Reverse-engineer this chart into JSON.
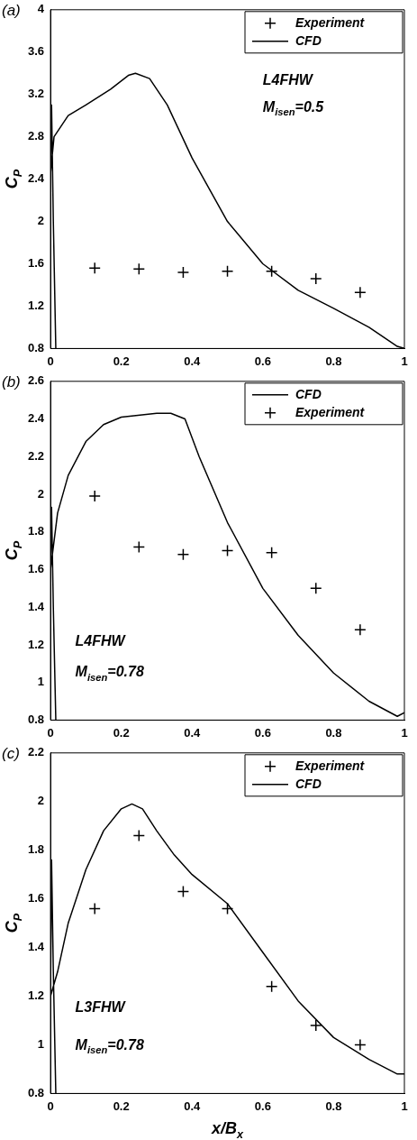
{
  "chart_data": [
    {
      "type": "line",
      "title": "(a)",
      "ylabel": "C$_{P}$",
      "xlim": [
        0,
        1
      ],
      "xticks": [
        0,
        0.2,
        0.4,
        0.6,
        0.8,
        1
      ],
      "ylim": [
        0.8,
        4
      ],
      "yticks": [
        0.8,
        1.2,
        1.6,
        2,
        2.4,
        2.8,
        3.2,
        3.6,
        4
      ],
      "grid": false,
      "legend": "top right",
      "annotations": [
        "L4FHW",
        "M$_{isen}$=0.5"
      ],
      "series": [
        {
          "name": "Experiment",
          "type": "scatter",
          "marker": "cross",
          "color": "#000000",
          "x": [
            0.125,
            0.25,
            0.375,
            0.5,
            0.625,
            0.75,
            0.875
          ],
          "values": [
            1.56,
            1.55,
            1.52,
            1.53,
            1.53,
            1.46,
            1.33
          ]
        },
        {
          "name": "CFD",
          "type": "line",
          "marker": "none",
          "line_style": "solid",
          "color": "#000000",
          "x": [
            0.015,
            0.008,
            0.003,
            0,
            0.01,
            0.05,
            0.1,
            0.17,
            0.22,
            0.24,
            0.28,
            0.33,
            0.4,
            0.5,
            0.6,
            0.7,
            0.8,
            0.9,
            0.98,
            1
          ],
          "values": [
            0.8,
            2,
            3.1,
            2.45,
            2.8,
            3.0,
            3.1,
            3.25,
            3.38,
            3.4,
            3.35,
            3.1,
            2.6,
            2.0,
            1.6,
            1.35,
            1.18,
            1.0,
            0.82,
            0.8
          ]
        }
      ]
    },
    {
      "type": "line",
      "title": "(b)",
      "ylabel": "C$_{P}$",
      "xlim": [
        0,
        1
      ],
      "xticks": [
        0,
        0.2,
        0.4,
        0.6,
        0.8,
        1
      ],
      "ylim": [
        0.8,
        2.6
      ],
      "yticks": [
        0.8,
        1,
        1.2,
        1.4,
        1.6,
        1.8,
        2,
        2.2,
        2.4,
        2.6
      ],
      "grid": false,
      "legend": "top right",
      "annotations": [
        "L4FHW",
        "M$_{isen}$=0.78"
      ],
      "series": [
        {
          "name": "CFD",
          "type": "line",
          "marker": "none",
          "line_style": "solid",
          "color": "#000000",
          "x": [
            0.015,
            0.008,
            0.003,
            0,
            0.02,
            0.05,
            0.1,
            0.15,
            0.2,
            0.3,
            0.34,
            0.38,
            0.42,
            0.5,
            0.6,
            0.7,
            0.8,
            0.9,
            0.98,
            1
          ],
          "values": [
            0.8,
            1.4,
            1.93,
            1.6,
            1.9,
            2.1,
            2.28,
            2.37,
            2.41,
            2.43,
            2.43,
            2.4,
            2.2,
            1.85,
            1.5,
            1.25,
            1.05,
            0.9,
            0.82,
            0.84
          ]
        },
        {
          "name": "Experiment",
          "type": "scatter",
          "marker": "cross",
          "color": "#000000",
          "x": [
            0.125,
            0.25,
            0.375,
            0.5,
            0.625,
            0.75,
            0.875
          ],
          "values": [
            1.99,
            1.72,
            1.68,
            1.7,
            1.69,
            1.5,
            1.28
          ]
        }
      ]
    },
    {
      "type": "line",
      "title": "(c)",
      "xlabel": "x/B$_{x}$",
      "ylabel": "C$_{P}$",
      "xlim": [
        0,
        1
      ],
      "xticks": [
        0,
        0.2,
        0.4,
        0.6,
        0.8,
        1
      ],
      "ylim": [
        0.8,
        2.2
      ],
      "yticks": [
        0.8,
        1,
        1.2,
        1.4,
        1.6,
        1.8,
        2,
        2.2
      ],
      "grid": false,
      "legend": "top right",
      "annotations": [
        "L3FHW",
        "M$_{isen}$=0.78"
      ],
      "series": [
        {
          "name": "Experiment",
          "type": "scatter",
          "marker": "cross",
          "color": "#000000",
          "x": [
            0.125,
            0.25,
            0.375,
            0.5,
            0.625,
            0.75,
            0.875
          ],
          "values": [
            1.56,
            1.86,
            1.63,
            1.56,
            1.24,
            1.08,
            1.0
          ]
        },
        {
          "name": "CFD",
          "type": "line",
          "marker": "none",
          "line_style": "solid",
          "color": "#000000",
          "x": [
            0.015,
            0.008,
            0.003,
            0,
            0.02,
            0.05,
            0.1,
            0.15,
            0.2,
            0.23,
            0.26,
            0.3,
            0.35,
            0.4,
            0.5,
            0.6,
            0.7,
            0.8,
            0.9,
            0.98,
            1
          ],
          "values": [
            0.8,
            1.3,
            1.76,
            1.2,
            1.3,
            1.5,
            1.72,
            1.88,
            1.97,
            1.99,
            1.97,
            1.88,
            1.78,
            1.7,
            1.58,
            1.38,
            1.18,
            1.03,
            0.94,
            0.88,
            0.88
          ]
        }
      ]
    }
  ]
}
